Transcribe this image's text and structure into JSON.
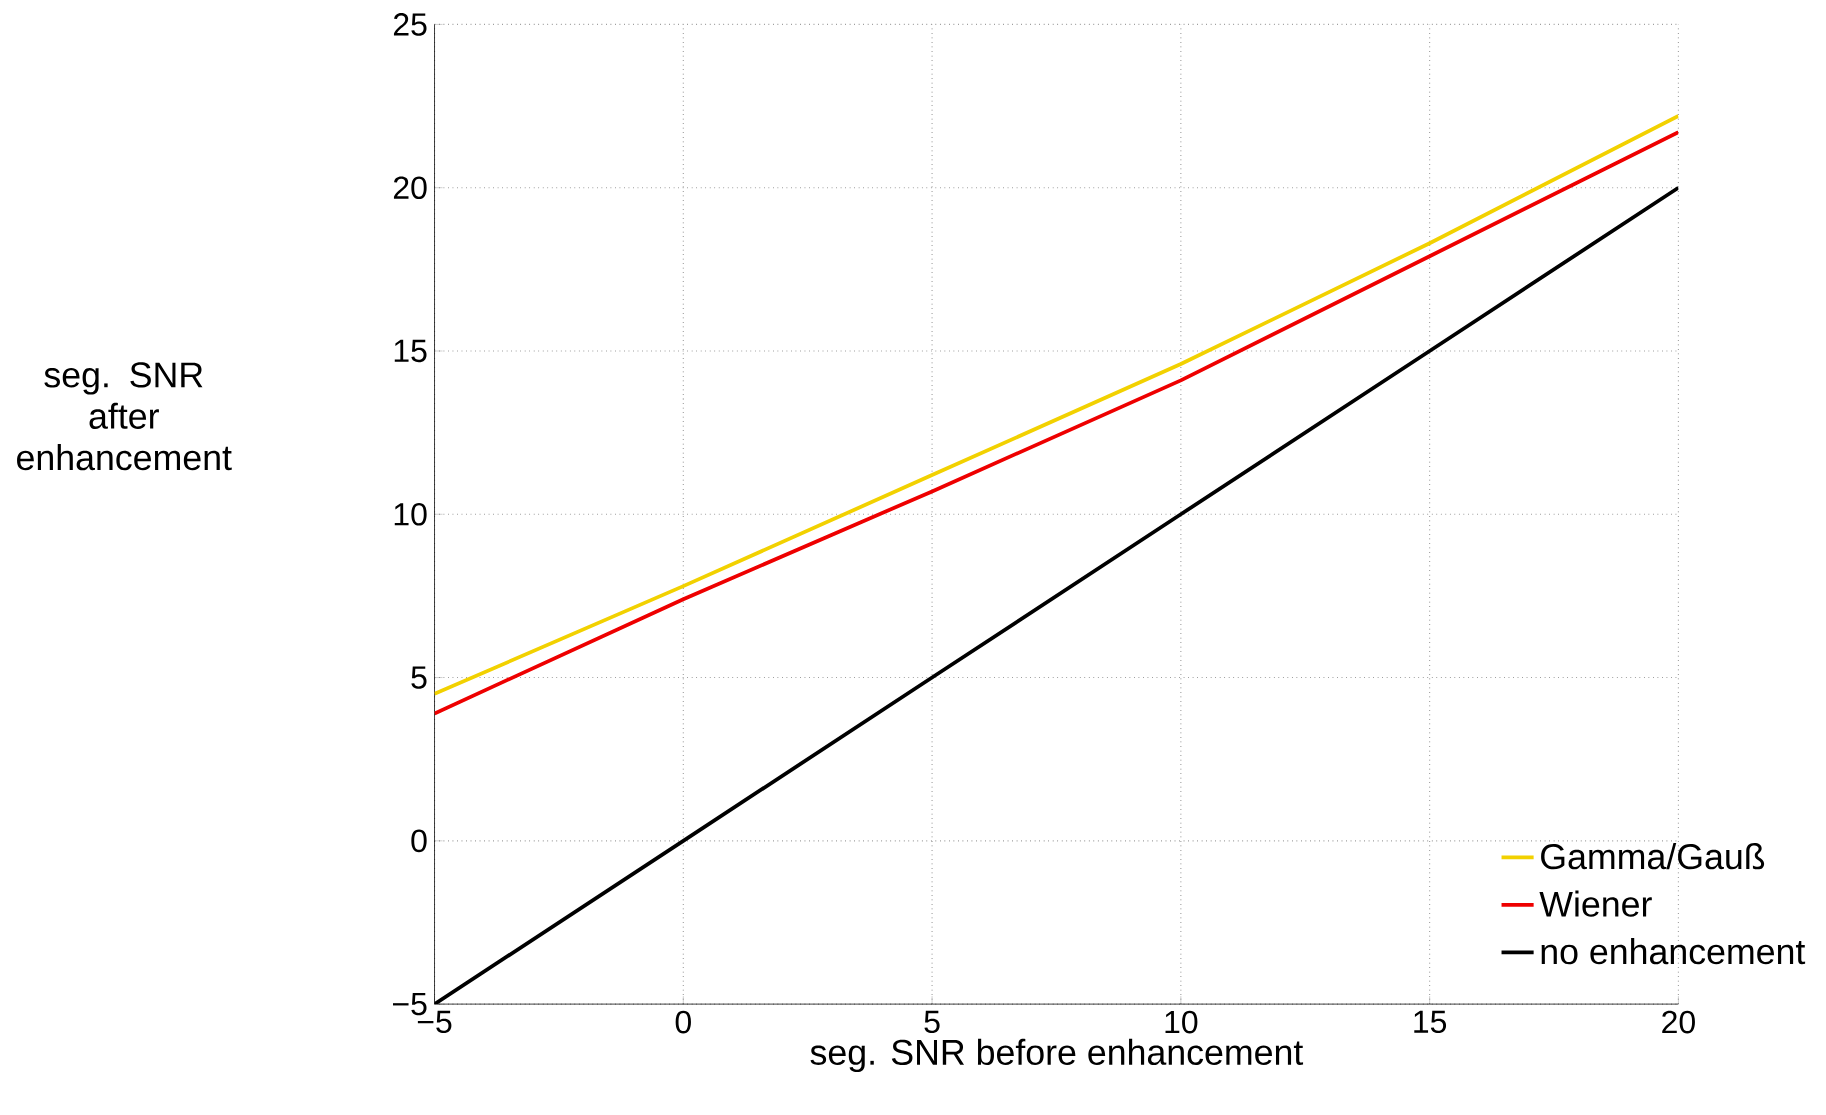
{
  "chart_data": {
    "type": "line",
    "xlabel": "seg. SNR before enhancement",
    "ylabel": "seg. SNR after enhancement",
    "x": [
      -5,
      0,
      5,
      10,
      15,
      20
    ],
    "series": [
      {
        "name": "Gamma/Gauß",
        "color": "#f2d100",
        "values": [
          4.5,
          7.8,
          11.2,
          14.6,
          18.3,
          22.2
        ]
      },
      {
        "name": "Wiener",
        "color": "#ee0000",
        "values": [
          3.9,
          7.4,
          10.7,
          14.1,
          17.9,
          21.7
        ]
      },
      {
        "name": "no enhancement",
        "color": "#000000",
        "values": [
          -5,
          0,
          5,
          10,
          15,
          20
        ]
      }
    ],
    "xlim": [
      -5,
      20
    ],
    "ylim": [
      -5,
      25
    ],
    "xticks": [
      {
        "value": -5,
        "label": "−5"
      },
      0,
      5,
      10,
      15,
      20
    ],
    "yticks": [
      {
        "value": -5,
        "label": "−5"
      },
      0,
      5,
      10,
      15,
      20,
      25
    ],
    "grid": true,
    "legend": "bottom right",
    "marker": "none",
    "line_style": "solid"
  }
}
